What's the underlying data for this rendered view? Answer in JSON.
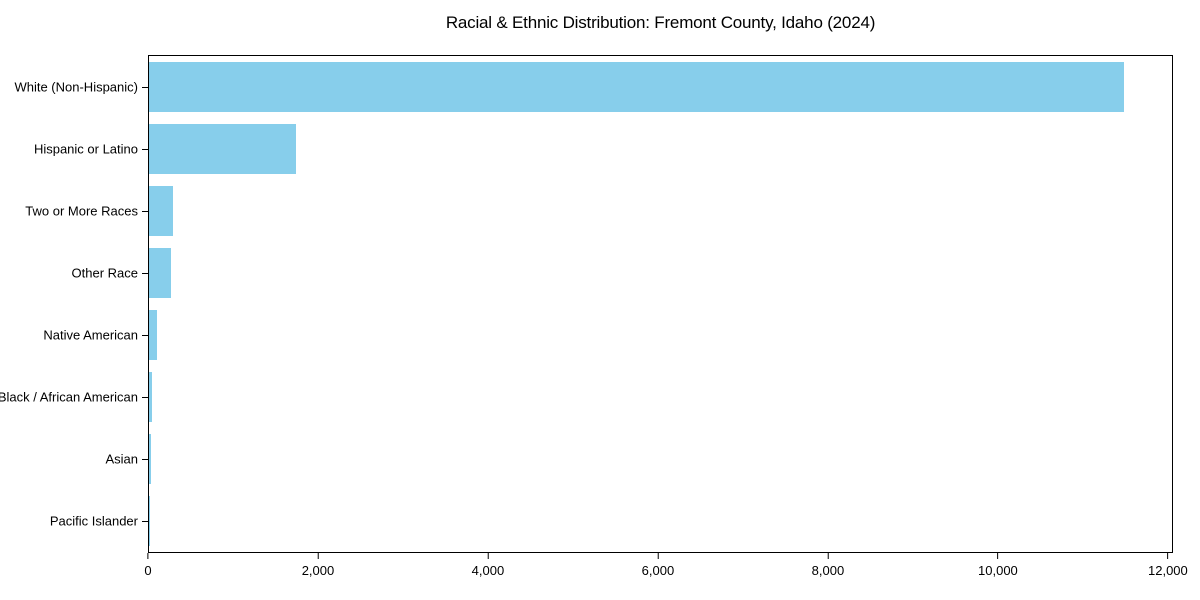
{
  "title": "Racial & Ethnic Distribution: Fremont County, Idaho (2024)",
  "chart_data": {
    "type": "bar",
    "orientation": "horizontal",
    "title": "Racial & Ethnic Distribution: Fremont County, Idaho (2024)",
    "categories": [
      "White (Non-Hispanic)",
      "Hispanic or Latino",
      "Two or More Races",
      "Other Race",
      "Native American",
      "Black / African American",
      "Asian",
      "Pacific Islander"
    ],
    "values": [
      11500,
      1730,
      280,
      260,
      90,
      40,
      20,
      5
    ],
    "xlabel": "",
    "ylabel": "",
    "xlim": [
      0,
      12060
    ],
    "xticks": [
      0,
      2000,
      4000,
      6000,
      8000,
      10000,
      12000
    ],
    "xticklabels": [
      "0",
      "2,000",
      "4,000",
      "6,000",
      "8,000",
      "10,000",
      "12,000"
    ],
    "bar_color": "#87CEEB",
    "spine_color": "#000000",
    "grid": false,
    "legend": null
  }
}
